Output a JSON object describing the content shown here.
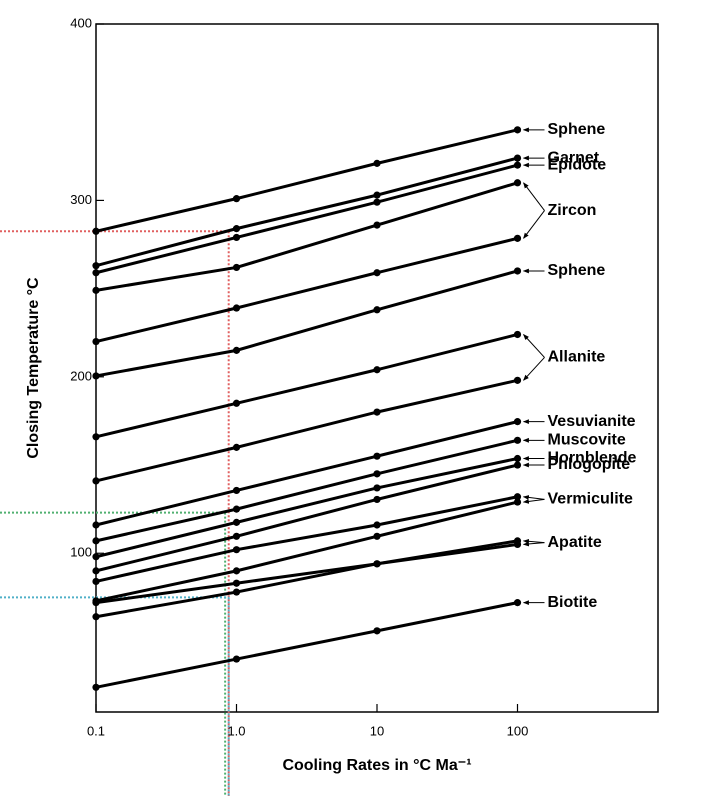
{
  "chart_data": {
    "type": "line",
    "x_label": "Cooling Rates in °C Ma⁻¹",
    "y_label": "Closing Temperature °C",
    "x": [
      0.1,
      1,
      10,
      100
    ],
    "xlim": [
      0.1,
      1000
    ],
    "log_x": true,
    "xticks": [
      0.1,
      {
        "value": 1,
        "label": "1.0"
      },
      10,
      100
    ],
    "ylim": [
      10,
      400
    ],
    "yticks": [
      100,
      200,
      300,
      400
    ],
    "color": "#000000",
    "series": [
      {
        "name": "Sphene",
        "values": [
          282.5,
          301,
          321,
          340
        ]
      },
      {
        "name": "Garnet",
        "values": [
          263,
          284,
          303,
          324
        ]
      },
      {
        "name": "Epidote",
        "values": [
          259,
          279,
          299,
          320
        ]
      },
      {
        "name": "Zircon",
        "values": [
          249,
          262,
          286,
          310
        ]
      },
      {
        "name": "Zircon",
        "values": [
          220,
          239,
          259,
          278.5
        ]
      },
      {
        "name": "Sphene",
        "values": [
          200.5,
          215,
          238,
          260
        ]
      },
      {
        "name": "Allanite",
        "values": [
          166,
          185,
          204,
          224
        ]
      },
      {
        "name": "Allanite",
        "values": [
          141,
          160,
          180,
          198
        ]
      },
      {
        "name": "Vesuvianite",
        "values": [
          116,
          135.6,
          155,
          174.6
        ]
      },
      {
        "name": "Muscovite",
        "values": [
          107,
          125,
          145,
          164
        ]
      },
      {
        "name": "Hornblende",
        "values": [
          98,
          117.5,
          137,
          153.7
        ]
      },
      {
        "name": "Phlogopite",
        "values": [
          90,
          109.6,
          130.5,
          150
        ]
      },
      {
        "name": "Vermiculite",
        "values": [
          84,
          102,
          116,
          132
        ]
      },
      {
        "name": "Vermiculite",
        "values": [
          73,
          90,
          109.6,
          129
        ]
      },
      {
        "name": "Apatite",
        "values": [
          72,
          83,
          94,
          107
        ]
      },
      {
        "name": "Apatite",
        "values": [
          64,
          78,
          94,
          105
        ]
      },
      {
        "name": "Biotite",
        "values": [
          24,
          40,
          56,
          72
        ]
      }
    ],
    "reference_lines": [
      {
        "x": 0.88,
        "y": 282.5,
        "color": "#e06060"
      },
      {
        "x": 0.83,
        "y": 123,
        "color": "#50b070"
      },
      {
        "x": 0.88,
        "y": 75,
        "color": "#50b0c8"
      }
    ]
  }
}
